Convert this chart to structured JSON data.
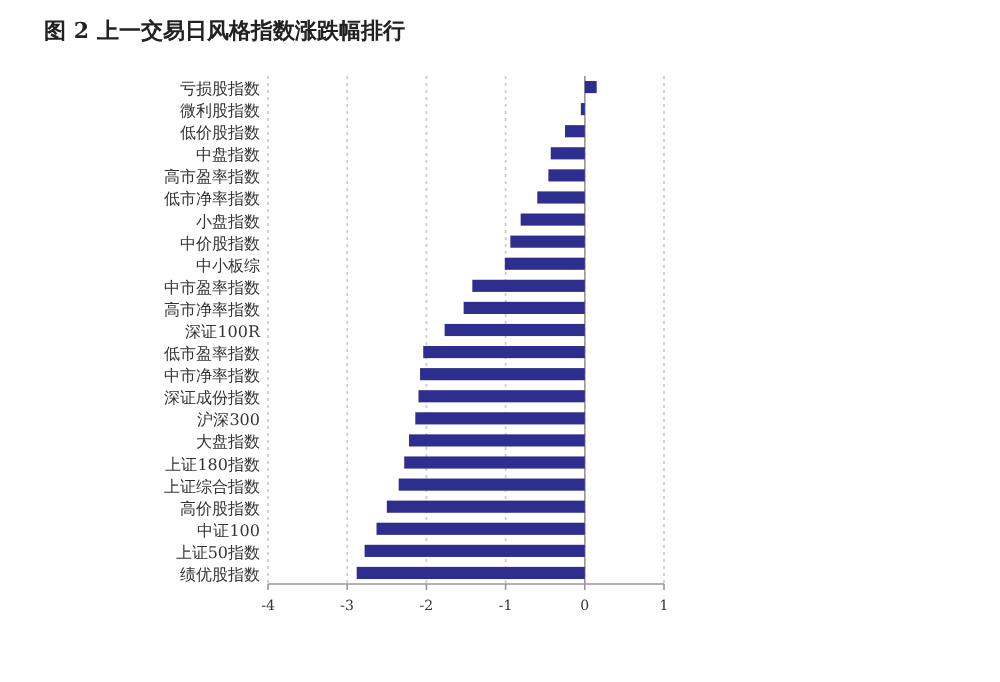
{
  "chart_data": {
    "type": "bar",
    "orientation": "horizontal",
    "title": "图 2 上一交易日风格指数涨跌幅排行",
    "categories": [
      "亏损股指数",
      "微利股指数",
      "低价股指数",
      "中盘指数",
      "高市盈率指数",
      "低市净率指数",
      "小盘指数",
      "中价股指数",
      "中小板综",
      "中市盈率指数",
      "高市净率指数",
      "深证100R",
      "低市盈率指数",
      "中市净率指数",
      "深证成份指数",
      "沪深300",
      "大盘指数",
      "上证180指数",
      "上证综合指数",
      "高价股指数",
      "中证100",
      "上证50指数",
      "绩优股指数"
    ],
    "values": [
      0.15,
      -0.05,
      -0.25,
      -0.43,
      -0.46,
      -0.6,
      -0.81,
      -0.94,
      -1.01,
      -1.42,
      -1.53,
      -1.77,
      -2.04,
      -2.08,
      -2.1,
      -2.14,
      -2.22,
      -2.28,
      -2.35,
      -2.5,
      -2.63,
      -2.78,
      -2.88
    ],
    "color": "#2e2e8f",
    "xlim": [
      -4,
      1
    ],
    "xticks": [
      -4,
      -3,
      -2,
      -1,
      0,
      1
    ],
    "grid": "x"
  }
}
